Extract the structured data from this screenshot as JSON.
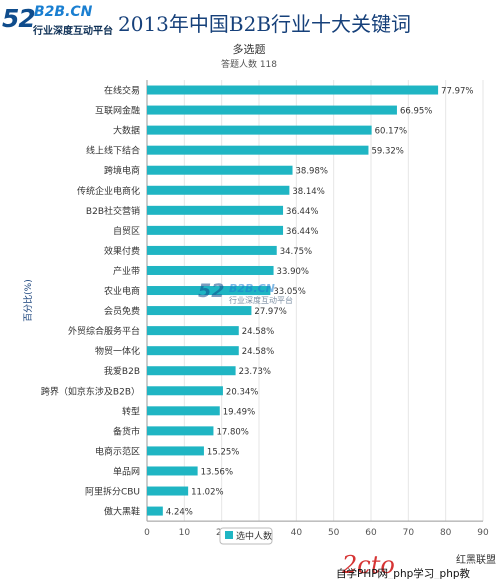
{
  "logo": {
    "number": "52",
    "brand": "B2B.CN",
    "tagline": "行业深度互动平台"
  },
  "page_title": "2013年中国B2B行业十大关键词",
  "watermark_center": {
    "number": "52",
    "brand": "B2B.CN",
    "tagline": "行业深度互动平台"
  },
  "watermark_bottom": {
    "brand_mark": "红黑联盟",
    "text": "自学PHP网_php学习_php教"
  },
  "colors": {
    "bar": "#1fb5c3",
    "grid": "#e6e6e6",
    "axis_text": "#555555",
    "title": "#16407a",
    "logo_dark": "#0f4c8c",
    "logo_light": "#1a7fd1",
    "legend_border": "#bbbbbb"
  },
  "chart_data": {
    "type": "bar",
    "orientation": "horizontal",
    "title": "多选题",
    "subtitle": "答题人数 118",
    "ylabel": "百分比(%)",
    "categories": [
      "在线交易",
      "互联网金融",
      "大数据",
      "线上线下结合",
      "跨境电商",
      "传统企业电商化",
      "B2B社交营销",
      "自贸区",
      "效果付费",
      "产业带",
      "农业电商",
      "会员免费",
      "外贸综合服务平台",
      "物贸一体化",
      "我爱B2B",
      "跨界（如京东涉及B2B）",
      "转型",
      "备货市",
      "电商示范区",
      "单品网",
      "阿里拆分CBU",
      "傲大黑鞋"
    ],
    "series": [
      {
        "name": "选中人数",
        "values": [
          77.97,
          66.95,
          60.17,
          59.32,
          38.98,
          38.14,
          36.44,
          36.44,
          34.75,
          33.9,
          33.05,
          27.97,
          24.58,
          24.58,
          23.73,
          20.34,
          19.49,
          17.8,
          15.25,
          13.56,
          11.02,
          4.24
        ]
      }
    ],
    "data_labels": [
      "77.97%",
      "66.95%",
      "60.17%",
      "59.32%",
      "38.98%",
      "38.14%",
      "36.44%",
      "36.44%",
      "34.75%",
      "33.90%",
      "33.05%",
      "27.97%",
      "24.58%",
      "24.58%",
      "23.73%",
      "20.34%",
      "19.49%",
      "17.80%",
      "15.25%",
      "13.56%",
      "11.02%",
      "4.24%"
    ],
    "xlim": [
      0,
      90
    ],
    "xticks": [
      0,
      10,
      20,
      30,
      40,
      50,
      60,
      70,
      80,
      90
    ],
    "grid": true,
    "legend_position": "bottom-center"
  }
}
